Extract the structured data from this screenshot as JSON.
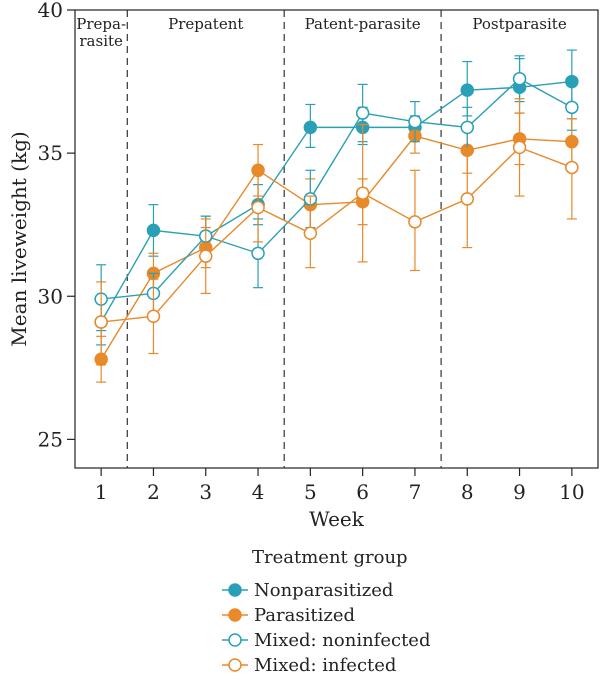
{
  "chart_data": {
    "type": "line",
    "xlabel": "Week",
    "ylabel": "Mean liveweight (kg)",
    "x": [
      1,
      2,
      3,
      4,
      5,
      6,
      7,
      8,
      9,
      10
    ],
    "xlim": [
      0.5,
      10.5
    ],
    "ylim": [
      24,
      40
    ],
    "yticks": [
      25,
      30,
      35,
      40
    ],
    "xticks": [
      1,
      2,
      3,
      4,
      5,
      6,
      7,
      8,
      9,
      10
    ],
    "grid": false,
    "phases": [
      {
        "label": "Prepa-\nrasite",
        "from": 0.5,
        "to": 1.5
      },
      {
        "label": "Prepatent",
        "from": 1.5,
        "to": 4.5
      },
      {
        "label": "Patent-parasite",
        "from": 4.5,
        "to": 7.5
      },
      {
        "label": "Postparasite",
        "from": 7.5,
        "to": 10.5
      }
    ],
    "phase_boundaries": [
      1.5,
      4.5,
      7.5
    ],
    "legend_title": "Treatment group",
    "legend_position": "bottom",
    "series": [
      {
        "name": "Nonparasitized",
        "color": "#2aa0b6",
        "marker": "filled-circle",
        "values": [
          29.1,
          32.3,
          32.1,
          33.2,
          35.9,
          35.9,
          35.9,
          37.2,
          37.3,
          37.5
        ],
        "err_low": [
          28.3,
          31.4,
          31.4,
          32.5,
          35.2,
          35.3,
          35.5,
          36.3,
          36.4,
          36.5
        ],
        "err_high": [
          29.8,
          33.2,
          32.8,
          33.9,
          36.7,
          36.6,
          36.3,
          38.2,
          38.3,
          38.6
        ]
      },
      {
        "name": "Parasitized",
        "color": "#e8892a",
        "marker": "filled-circle",
        "values": [
          27.8,
          30.8,
          31.7,
          34.4,
          33.2,
          33.3,
          35.6,
          35.1,
          35.5,
          35.4
        ],
        "err_low": [
          27.0,
          30.1,
          31.0,
          33.5,
          32.2,
          32.5,
          35.0,
          34.3,
          34.6,
          34.6
        ],
        "err_high": [
          28.6,
          31.5,
          32.4,
          35.3,
          34.1,
          34.1,
          36.2,
          35.9,
          36.4,
          36.2
        ]
      },
      {
        "name": "Mixed: noninfected",
        "color": "#2aa0b6",
        "marker": "open-circle",
        "values": [
          29.9,
          30.1,
          32.1,
          31.5,
          33.4,
          36.4,
          36.1,
          35.9,
          37.6,
          36.6
        ],
        "err_low": [
          28.8,
          29.4,
          31.4,
          30.3,
          32.4,
          35.4,
          35.4,
          35.2,
          36.8,
          35.8
        ],
        "err_high": [
          31.1,
          30.8,
          32.8,
          32.7,
          34.4,
          37.4,
          36.8,
          36.6,
          38.4,
          37.4
        ]
      },
      {
        "name": "Mixed: infected",
        "color": "#e8892a",
        "marker": "open-circle",
        "values": [
          29.1,
          29.3,
          31.4,
          33.1,
          32.2,
          33.6,
          32.6,
          33.4,
          35.2,
          34.5
        ],
        "err_low": [
          27.6,
          28.0,
          30.1,
          31.9,
          31.0,
          31.2,
          30.9,
          31.7,
          33.5,
          32.7
        ],
        "err_high": [
          30.5,
          30.6,
          32.7,
          34.3,
          33.5,
          36.0,
          34.4,
          35.2,
          36.9,
          36.2
        ]
      }
    ]
  }
}
